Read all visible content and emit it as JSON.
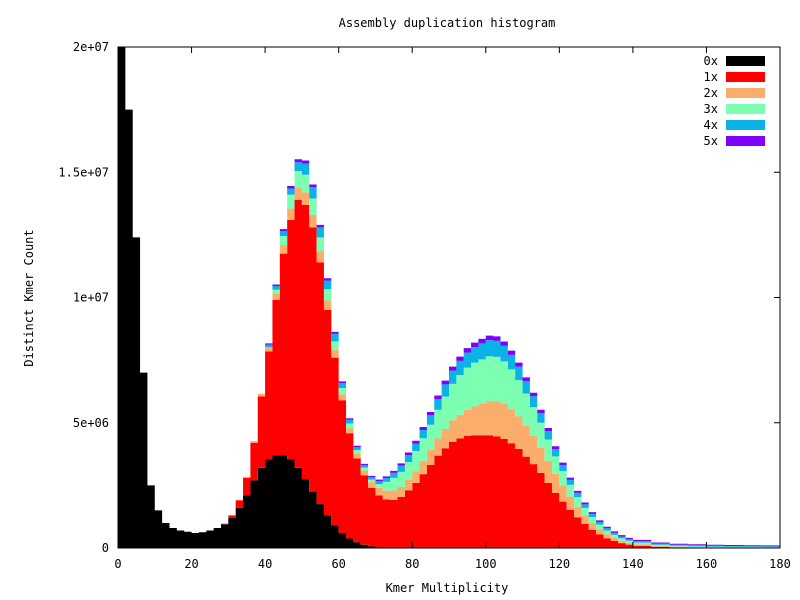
{
  "chart_data": {
    "type": "area",
    "stacked": true,
    "title": "Assembly duplication histogram",
    "xlabel": "Kmer Multiplicity",
    "ylabel": "Distinct Kmer Count",
    "xlim": [
      0,
      180
    ],
    "ylim": [
      0,
      20000000
    ],
    "xticks": [
      0,
      20,
      40,
      60,
      80,
      100,
      120,
      140,
      160,
      180
    ],
    "xtick_labels": [
      "0",
      "20",
      "40",
      "60",
      "80",
      "100",
      "120",
      "140",
      "160",
      "180"
    ],
    "yticks": [
      0,
      5000000,
      10000000,
      15000000,
      20000000
    ],
    "ytick_labels": [
      "0",
      "5e+06",
      "1e+07",
      "1.5e+07",
      "2e+07"
    ],
    "legend_position": "top-right",
    "grid": false,
    "x": [
      0,
      2,
      4,
      6,
      8,
      10,
      12,
      14,
      16,
      18,
      20,
      22,
      24,
      26,
      28,
      30,
      32,
      34,
      36,
      38,
      40,
      42,
      44,
      46,
      48,
      50,
      52,
      54,
      56,
      58,
      60,
      62,
      64,
      66,
      68,
      70,
      72,
      74,
      76,
      78,
      80,
      82,
      84,
      86,
      88,
      90,
      92,
      94,
      96,
      98,
      100,
      102,
      104,
      106,
      108,
      110,
      112,
      114,
      116,
      118,
      120,
      122,
      124,
      126,
      128,
      130,
      132,
      134,
      136,
      138,
      140,
      145,
      150,
      155,
      160,
      165,
      170,
      175,
      180
    ],
    "series": [
      {
        "name": "0x",
        "color": "#000000",
        "values": [
          20000000,
          17500000,
          12400000,
          7000000,
          2500000,
          1500000,
          1000000,
          800000,
          700000,
          650000,
          600000,
          630000,
          700000,
          800000,
          950000,
          1200000,
          1600000,
          2100000,
          2700000,
          3200000,
          3550000,
          3700000,
          3700000,
          3550000,
          3200000,
          2750000,
          2250000,
          1750000,
          1300000,
          900000,
          600000,
          380000,
          230000,
          130000,
          70000,
          35000,
          18000,
          10000,
          5000,
          2500,
          1000,
          500,
          200,
          0,
          0,
          0,
          0,
          0,
          0,
          0,
          0,
          0,
          0,
          0,
          0,
          0,
          0,
          0,
          0,
          0,
          0,
          0,
          0,
          0,
          0,
          0,
          0,
          0,
          0,
          0,
          0,
          0,
          0,
          0,
          0,
          0,
          0,
          0,
          0
        ]
      },
      {
        "name": "1x",
        "color": "#ff0000",
        "values": [
          0,
          0,
          0,
          0,
          0,
          0,
          0,
          0,
          0,
          0,
          0,
          0,
          0,
          0,
          20000,
          100000,
          300000,
          700000,
          1500000,
          2850000,
          4300000,
          6200000,
          8050000,
          9550000,
          10700000,
          10950000,
          10550000,
          9650000,
          8200000,
          6700000,
          5300000,
          4200000,
          3350000,
          2770000,
          2330000,
          2065000,
          1922000,
          1910000,
          2035000,
          2297500,
          2599000,
          2949500,
          3319800,
          3690000,
          3980000,
          4240000,
          4370000,
          4470000,
          4500000,
          4500000,
          4500000,
          4450000,
          4350000,
          4180000,
          3950000,
          3650000,
          3350000,
          3000000,
          2600000,
          2200000,
          1850000,
          1520000,
          1220000,
          960000,
          730000,
          540000,
          390000,
          280000,
          195000,
          135000,
          90000,
          40000,
          20000,
          10000,
          5000,
          3000,
          2000,
          1000,
          0
        ]
      },
      {
        "name": "2x",
        "color": "#fbad6b",
        "values": [
          0,
          0,
          0,
          0,
          0,
          0,
          0,
          0,
          0,
          0,
          0,
          0,
          0,
          0,
          0,
          0,
          20000,
          40000,
          70000,
          110000,
          170000,
          260000,
          350000,
          450000,
          500000,
          500000,
          500000,
          450000,
          380000,
          300000,
          230000,
          190000,
          180000,
          190000,
          230000,
          300000,
          350000,
          380000,
          400000,
          430000,
          470000,
          530000,
          600000,
          680000,
          770000,
          860000,
          950000,
          1050000,
          1150000,
          1250000,
          1350000,
          1400000,
          1400000,
          1350000,
          1300000,
          1220000,
          1120000,
          1000000,
          880000,
          760000,
          640000,
          530000,
          430000,
          340000,
          270000,
          210000,
          160000,
          125000,
          95000,
          75000,
          60000,
          40000,
          30000,
          25000,
          20000,
          18000,
          16000,
          15000,
          0
        ]
      },
      {
        "name": "3x",
        "color": "#7dffb1",
        "values": [
          0,
          0,
          0,
          0,
          0,
          0,
          0,
          0,
          0,
          0,
          0,
          0,
          0,
          0,
          0,
          0,
          0,
          0,
          0,
          0,
          0,
          150000,
          350000,
          550000,
          650000,
          700000,
          650000,
          550000,
          450000,
          350000,
          250000,
          200000,
          150000,
          120000,
          100000,
          150000,
          350000,
          500000,
          600000,
          700000,
          800000,
          900000,
          1000000,
          1150000,
          1300000,
          1450000,
          1580000,
          1680000,
          1750000,
          1780000,
          1800000,
          1780000,
          1700000,
          1600000,
          1450000,
          1300000,
          1150000,
          1000000,
          850000,
          700000,
          580000,
          470000,
          380000,
          300000,
          240000,
          190000,
          150000,
          120000,
          100000,
          80000,
          70000,
          50000,
          40000,
          35000,
          30000,
          28000,
          25000,
          22000,
          0
        ]
      },
      {
        "name": "4x",
        "color": "#0bb2e5",
        "values": [
          0,
          0,
          0,
          0,
          0,
          0,
          0,
          0,
          0,
          0,
          0,
          0,
          0,
          0,
          0,
          0,
          0,
          0,
          0,
          0,
          100000,
          150000,
          200000,
          250000,
          350000,
          450000,
          450000,
          400000,
          350000,
          300000,
          200000,
          150000,
          120000,
          100000,
          100000,
          120000,
          150000,
          200000,
          250000,
          280000,
          300000,
          330000,
          380000,
          430000,
          480000,
          530000,
          570000,
          600000,
          620000,
          640000,
          650000,
          640000,
          620000,
          580000,
          540000,
          490000,
          440000,
          390000,
          340000,
          290000,
          240000,
          200000,
          170000,
          140000,
          120000,
          100000,
          90000,
          80000,
          70000,
          60000,
          55000,
          45000,
          40000,
          38000,
          35000,
          33000,
          32000,
          30000,
          0
        ]
      },
      {
        "name": "5x",
        "color": "#8000ff",
        "values": [
          0,
          0,
          0,
          0,
          0,
          0,
          0,
          0,
          0,
          0,
          0,
          0,
          0,
          0,
          0,
          0,
          0,
          0,
          0,
          0,
          50000,
          60000,
          80000,
          100000,
          120000,
          120000,
          110000,
          100000,
          90000,
          80000,
          70000,
          60000,
          50000,
          50000,
          50000,
          60000,
          70000,
          80000,
          90000,
          100000,
          110000,
          120000,
          130000,
          140000,
          150000,
          160000,
          170000,
          180000,
          180000,
          180000,
          180000,
          180000,
          175000,
          170000,
          160000,
          150000,
          140000,
          130000,
          120000,
          110000,
          100000,
          90000,
          80000,
          75000,
          70000,
          65000,
          60000,
          57000,
          55000,
          52000,
          50000,
          45000,
          42000,
          40000,
          40000,
          38000,
          37000,
          36000,
          0
        ]
      }
    ]
  }
}
